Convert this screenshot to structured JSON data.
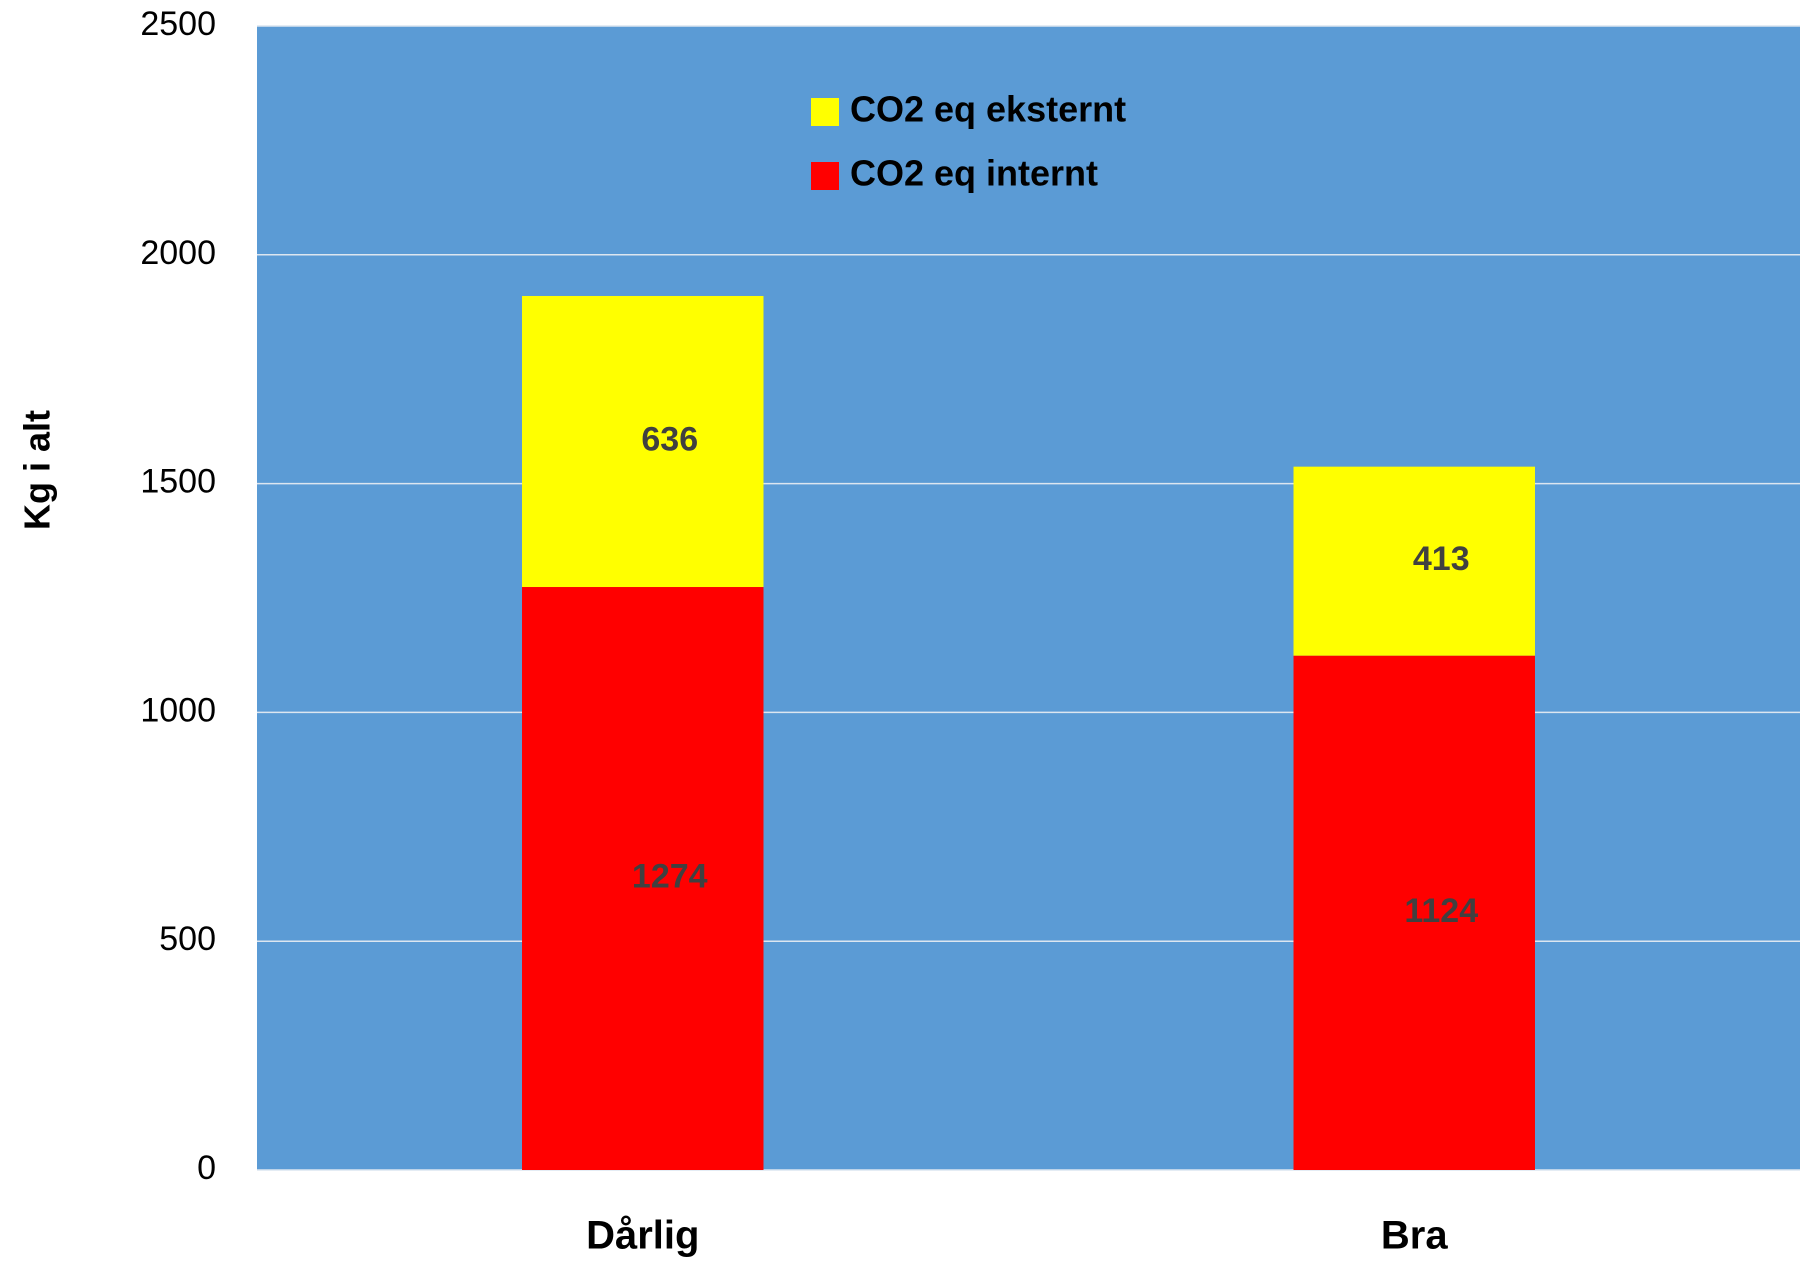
{
  "chart_data": {
    "type": "stacked_bar",
    "y_label": "Kg i alt",
    "categories": [
      "Dårlig",
      "Bra"
    ],
    "series": [
      {
        "name": "CO2 eq internt",
        "color": "#ff0000",
        "values": [
          1274,
          1124
        ]
      },
      {
        "name": "CO2 eq eksternt",
        "color": "#ffff00",
        "values": [
          636,
          413
        ]
      }
    ],
    "ylim": [
      0,
      2500
    ],
    "yticks": [
      0,
      500,
      1000,
      1500,
      2000,
      2500
    ],
    "grid": true,
    "legend": "top",
    "plot_background": "#5b9bd5"
  }
}
